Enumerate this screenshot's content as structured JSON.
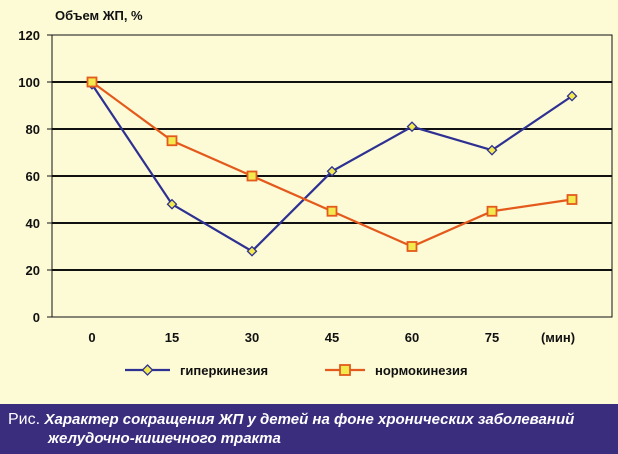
{
  "chart_data": {
    "type": "line",
    "ylabel": "Объем ЖП, %",
    "xlabel": "",
    "x_unit_label": "(мин)",
    "categories": [
      "0",
      "15",
      "30",
      "45",
      "60",
      "75"
    ],
    "x": [
      0,
      15,
      30,
      45,
      60,
      75
    ],
    "ylim": [
      0,
      120
    ],
    "yticks": [
      0,
      20,
      40,
      60,
      80,
      100,
      120
    ],
    "grid": true,
    "legend_position": "bottom",
    "series": [
      {
        "name": "гиперкинезия",
        "values": [
          99,
          48,
          28,
          62,
          81,
          71,
          94
        ],
        "x": [
          0,
          15,
          30,
          45,
          60,
          75,
          90
        ],
        "color": "#2e3192",
        "marker": "diamond",
        "marker_fill": "#f2e94e"
      },
      {
        "name": "нормокинезия",
        "values": [
          100,
          75,
          60,
          45,
          30,
          45,
          50
        ],
        "x": [
          0,
          15,
          30,
          45,
          60,
          75,
          90
        ],
        "color": "#e35a1c",
        "marker": "square",
        "marker_fill": "#f2e94e"
      }
    ]
  },
  "caption": {
    "prefix": "Рис.",
    "line1": "Характер сокращения ЖП у детей на фоне хронических заболеваний",
    "line2": "желудочно-кишечного тракта"
  },
  "colors": {
    "background": "#fdfbd6",
    "caption_bg": "#3a2d7d",
    "gridline": "#111111"
  }
}
